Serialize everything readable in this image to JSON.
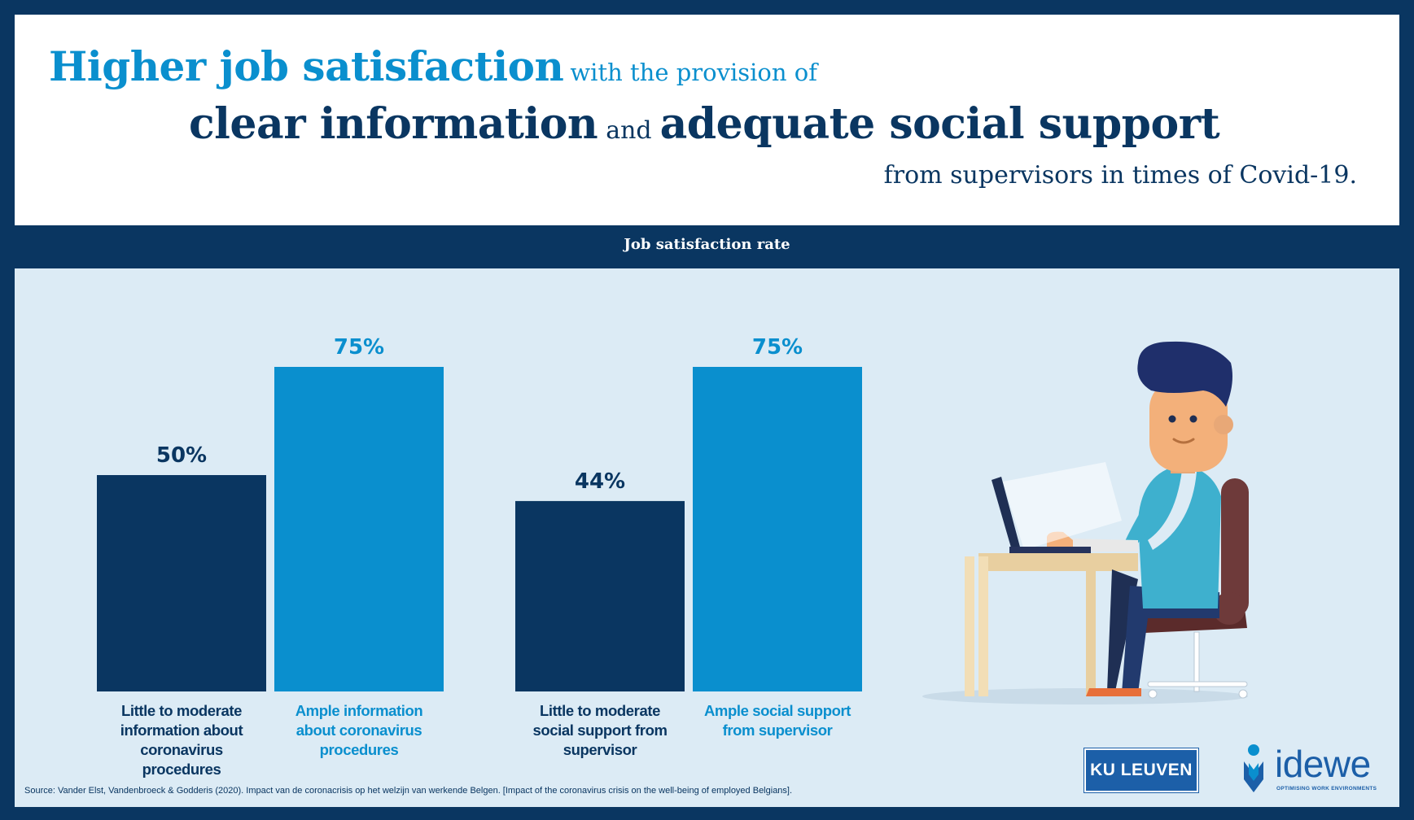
{
  "header": {
    "line1_bold": "Higher job satisfaction",
    "line1_rest": "with the provision of",
    "line2_bold_a": "clear information",
    "line2_and": "and",
    "line2_bold_b": "adequate social support",
    "line3": "from supervisors in times of Covid-19."
  },
  "colors": {
    "navy": "#0a3661",
    "blue": "#0a8fce",
    "panel": "#dcebf5"
  },
  "chart_data": {
    "type": "bar",
    "title": "Job satisfaction rate",
    "ylim": [
      0,
      100
    ],
    "grid": false,
    "categories": [
      "Little to moderate information about coronavirus procedures",
      "Ample information about coronavirus procedures",
      "Little to moderate social support from supervisor",
      "Ample social support from supervisor"
    ],
    "values": [
      50,
      75,
      44,
      75
    ],
    "value_labels": [
      "50%",
      "75%",
      "44%",
      "75%"
    ],
    "bar_colors": [
      "#0a3661",
      "#0a8fce",
      "#0a3661",
      "#0a8fce"
    ],
    "label_lines": [
      [
        "Little to moderate",
        "information about",
        "coronavirus",
        "procedures"
      ],
      [
        "Ample information",
        "about coronavirus",
        "procedures"
      ],
      [
        "Little to moderate",
        "social support from",
        "supervisor"
      ],
      [
        "Ample social support",
        "from supervisor"
      ]
    ]
  },
  "footer": {
    "source": "Source: Vander Elst, Vandenbroeck & Godderis (2020). Impact van de coronacrisis op het welzijn van werkende Belgen. [Impact of the coronavirus crisis on the well-being of employed Belgians].",
    "logo_kuleuven": "KU LEUVEN",
    "logo_idewe": "idewe",
    "logo_idewe_tagline": "OPTIMISING WORK ENVIRONMENTS"
  },
  "illustration": {
    "subject": "man-working-at-laptop"
  }
}
